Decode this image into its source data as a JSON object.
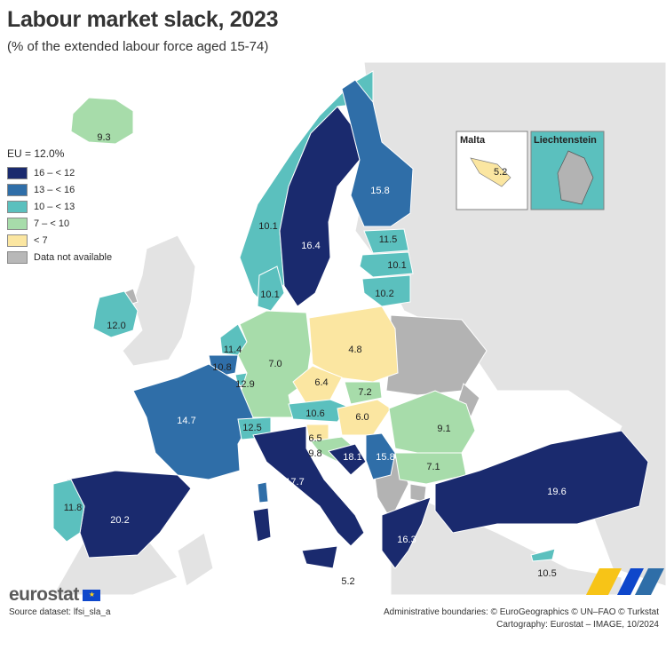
{
  "header": {
    "title": "Labour market slack, 2023",
    "subtitle": "(% of the extended labour force aged 15-74)"
  },
  "legend": {
    "header": "EU = 12.0%",
    "items": [
      {
        "label": "16 – < 12",
        "color": "#1a2a6e"
      },
      {
        "label": "13 – < 16",
        "color": "#2f6ea8"
      },
      {
        "label": "10 – < 13",
        "color": "#5bc0be"
      },
      {
        "label": "7 – < 10",
        "color": "#a7dcaa"
      },
      {
        "label": "< 7",
        "color": "#fbe6a1"
      },
      {
        "label": "Data not available",
        "color": "#b8b8b8"
      }
    ]
  },
  "insets": {
    "malta": {
      "label": "Malta",
      "value": "5.2"
    },
    "liechtenstein": {
      "label": "Liechtenstein"
    }
  },
  "countries": {
    "iceland": "9.3",
    "ireland": "12.0",
    "norway": "10.1",
    "sweden": "16.4",
    "finland": "15.8",
    "estonia": "11.5",
    "latvia": "10.1",
    "lithuania": "10.2",
    "denmark": "10.1",
    "netherlands": "11.4",
    "belgium": "10.8",
    "luxembourg": "12.9",
    "germany": "7.0",
    "poland": "4.8",
    "czechia": "6.4",
    "slovakia": "7.2",
    "austria": "10.6",
    "hungary": "6.0",
    "slovenia": "6.5",
    "croatia": "9.8",
    "bosnia": "18.1",
    "serbia": "15.8",
    "romania": "9.1",
    "bulgaria": "7.1",
    "france": "14.7",
    "switzerland": "12.5",
    "italy": "17.7",
    "spain": "20.2",
    "portugal": "11.8",
    "greece": "16.3",
    "turkey": "19.6",
    "cyprus": "10.5",
    "malta_main": "5.2"
  },
  "footer": {
    "logo": "eurostat",
    "source": "Source dataset: lfsi_sla_a",
    "boundaries": "Administrative boundaries: © EuroGeographics © UN–FAO © Turkstat",
    "cartography": "Cartography: Eurostat – IMAGE, 10/2024"
  }
}
